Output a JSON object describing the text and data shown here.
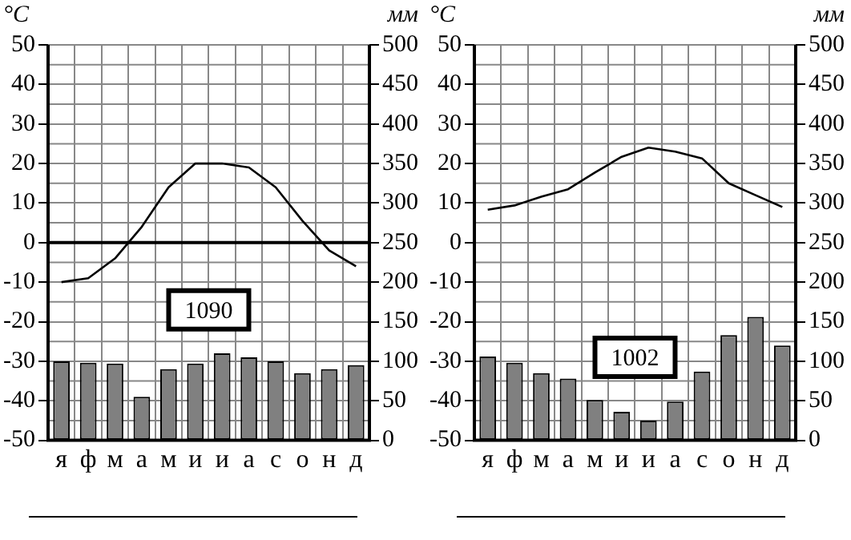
{
  "chart_data": [
    {
      "type": "bar",
      "ylabel": "°C",
      "y2label": "мм",
      "categories": [
        "я",
        "ф",
        "м",
        "а",
        "м",
        "и",
        "и",
        "а",
        "с",
        "о",
        "н",
        "д"
      ],
      "series": [
        {
          "axis": "y2",
          "color": "#808080",
          "values": [
            100,
            98,
            97,
            55,
            90,
            97,
            110,
            105,
            100,
            85,
            90,
            95
          ]
        },
        {
          "type": "line",
          "color": "#000000",
          "values": [
            -10,
            -9,
            -4,
            4,
            14,
            20,
            20,
            19,
            14,
            5.5,
            -2,
            -6
          ]
        }
      ],
      "ylim": [
        -50,
        50
      ],
      "yticks": [
        -50,
        -40,
        -30,
        -20,
        -10,
        0,
        10,
        20,
        30,
        40,
        50
      ],
      "y2lim": [
        0,
        500
      ],
      "y2ticks": [
        0,
        50,
        100,
        150,
        200,
        250,
        300,
        350,
        400,
        450,
        500
      ],
      "grid": true,
      "marker": "none",
      "annotations": [
        "1090"
      ],
      "ref_lines": [
        {
          "axis": "y",
          "value": 0,
          "color": "#000000"
        }
      ]
    },
    {
      "type": "bar",
      "ylabel": "°C",
      "y2label": "мм",
      "categories": [
        "я",
        "ф",
        "м",
        "а",
        "м",
        "и",
        "и",
        "а",
        "с",
        "о",
        "н",
        "д"
      ],
      "series": [
        {
          "axis": "y2",
          "color": "#808080",
          "values": [
            106,
            98,
            85,
            78,
            51,
            36,
            25,
            49,
            87,
            133,
            156,
            120
          ]
        },
        {
          "type": "line",
          "color": "#000000",
          "values": [
            8.3,
            9.4,
            11.6,
            13.5,
            17.7,
            21.7,
            24,
            23,
            21.3,
            15,
            12,
            9
          ]
        }
      ],
      "ylim": [
        -50,
        50
      ],
      "yticks": [
        -50,
        -40,
        -30,
        -20,
        -10,
        0,
        10,
        20,
        30,
        40,
        50
      ],
      "y2lim": [
        0,
        500
      ],
      "y2ticks": [
        0,
        50,
        100,
        150,
        200,
        250,
        300,
        350,
        400,
        450,
        500
      ],
      "grid": true,
      "marker": "none",
      "annotations": [
        "1002"
      ]
    }
  ]
}
